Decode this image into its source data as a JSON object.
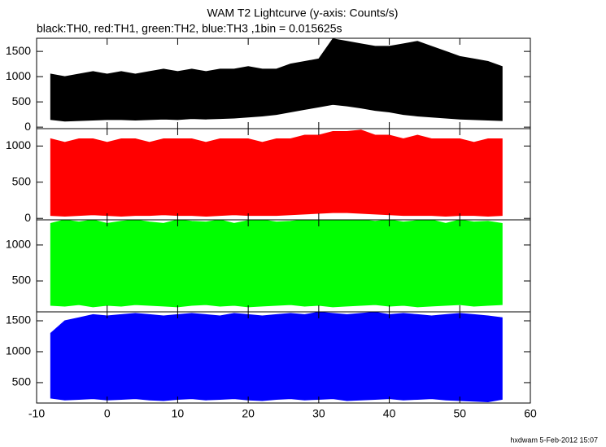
{
  "title": "WAM T2 Lightcurve (y-axis: Counts/s)",
  "subtitle": "black:TH0, red:TH1, green:TH2, blue:TH3 ,1bin = 0.015625s",
  "footer": "hxdwam 5-Feb-2012 15:07",
  "chart_data": [
    {
      "type": "band",
      "color": "#000000",
      "x": [
        -8,
        -6,
        -4,
        -2,
        0,
        2,
        4,
        6,
        8,
        10,
        12,
        14,
        16,
        18,
        20,
        22,
        24,
        26,
        28,
        30,
        32,
        34,
        36,
        38,
        40,
        42,
        44,
        46,
        48,
        50,
        52,
        54,
        56
      ],
      "values": [
        1050,
        1000,
        1050,
        1100,
        1050,
        1100,
        1050,
        1100,
        1150,
        1100,
        1150,
        1100,
        1150,
        1150,
        1200,
        1150,
        1150,
        1250,
        1300,
        1350,
        1750,
        1700,
        1650,
        1600,
        1600,
        1650,
        1700,
        1600,
        1500,
        1400,
        1350,
        1300,
        1200
      ],
      "lows": [
        150,
        120,
        130,
        140,
        150,
        150,
        140,
        150,
        160,
        150,
        170,
        160,
        170,
        180,
        200,
        220,
        250,
        300,
        350,
        400,
        450,
        420,
        380,
        330,
        300,
        250,
        220,
        200,
        180,
        160,
        150,
        140,
        130
      ],
      "xlim": [
        -10,
        60
      ],
      "ylim": [
        -30,
        1760
      ],
      "yticks": [
        0,
        500,
        1000,
        1500
      ]
    },
    {
      "type": "band",
      "color": "#ff0000",
      "x": [
        -8,
        -6,
        -4,
        -2,
        0,
        2,
        4,
        6,
        8,
        10,
        12,
        14,
        16,
        18,
        20,
        22,
        24,
        26,
        28,
        30,
        32,
        34,
        36,
        38,
        40,
        42,
        44,
        46,
        48,
        50,
        52,
        54,
        56
      ],
      "values": [
        1100,
        1050,
        1100,
        1100,
        1050,
        1100,
        1100,
        1050,
        1100,
        1100,
        1100,
        1050,
        1100,
        1100,
        1100,
        1050,
        1100,
        1100,
        1150,
        1150,
        1200,
        1200,
        1220,
        1150,
        1150,
        1100,
        1150,
        1100,
        1100,
        1100,
        1050,
        1100,
        1100
      ],
      "lows": [
        40,
        30,
        40,
        50,
        40,
        30,
        40,
        40,
        50,
        40,
        40,
        30,
        40,
        50,
        40,
        40,
        40,
        50,
        60,
        70,
        80,
        80,
        70,
        60,
        50,
        40,
        40,
        40,
        30,
        40,
        40,
        30,
        40
      ],
      "xlim": [
        -10,
        60
      ],
      "ylim": [
        -20,
        1240
      ],
      "yticks": [
        0,
        500,
        1000
      ]
    },
    {
      "type": "band",
      "color": "#00ff00",
      "x": [
        -8,
        -6,
        -4,
        -2,
        0,
        2,
        4,
        6,
        8,
        10,
        12,
        14,
        16,
        18,
        20,
        22,
        24,
        26,
        28,
        30,
        32,
        34,
        36,
        38,
        40,
        42,
        44,
        46,
        48,
        50,
        52,
        54,
        56
      ],
      "values": [
        1300,
        1350,
        1320,
        1350,
        1300,
        1330,
        1350,
        1320,
        1300,
        1350,
        1330,
        1320,
        1350,
        1300,
        1340,
        1350,
        1320,
        1330,
        1350,
        1340,
        1350,
        1350,
        1350,
        1330,
        1350,
        1320,
        1340,
        1350,
        1300,
        1350,
        1320,
        1330,
        1300
      ],
      "lows": [
        160,
        150,
        170,
        140,
        160,
        150,
        170,
        160,
        150,
        140,
        160,
        170,
        150,
        160,
        140,
        150,
        160,
        170,
        150,
        160,
        140,
        150,
        160,
        170,
        150,
        160,
        140,
        150,
        160,
        170,
        150,
        160,
        170
      ],
      "xlim": [
        -10,
        60
      ],
      "ylim": [
        70,
        1350
      ],
      "yticks": [
        500,
        1000
      ]
    },
    {
      "type": "band",
      "color": "#0000ff",
      "x": [
        -8,
        -6,
        -4,
        -2,
        0,
        2,
        4,
        6,
        8,
        10,
        12,
        14,
        16,
        18,
        20,
        22,
        24,
        26,
        28,
        30,
        32,
        34,
        36,
        38,
        40,
        42,
        44,
        46,
        48,
        50,
        52,
        54,
        56
      ],
      "values": [
        1300,
        1500,
        1550,
        1600,
        1580,
        1600,
        1620,
        1600,
        1580,
        1600,
        1620,
        1600,
        1580,
        1620,
        1600,
        1580,
        1600,
        1620,
        1600,
        1640,
        1620,
        1600,
        1620,
        1640,
        1600,
        1620,
        1600,
        1580,
        1600,
        1620,
        1600,
        1580,
        1550
      ],
      "lows": [
        250,
        220,
        230,
        240,
        220,
        230,
        240,
        220,
        210,
        230,
        240,
        220,
        230,
        240,
        220,
        210,
        230,
        240,
        220,
        230,
        240,
        210,
        220,
        230,
        240,
        220,
        230,
        240,
        220,
        210,
        200,
        190,
        230
      ],
      "xlim": [
        -10,
        60
      ],
      "ylim": [
        170,
        1645
      ],
      "yticks": [
        500,
        1000,
        1500
      ],
      "xticks": [
        -10,
        0,
        10,
        20,
        30,
        40,
        50,
        60
      ]
    }
  ]
}
